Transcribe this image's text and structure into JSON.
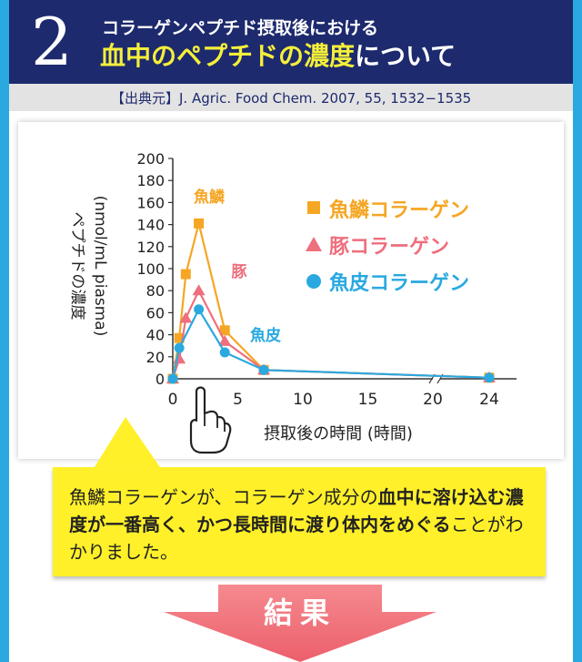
{
  "header": {
    "number": "2",
    "subtitle": "コラーゲンペプチド摂取後における",
    "title_highlight": "血中のペプチドの濃度",
    "title_rest": "について"
  },
  "source": "【出典元】J. Agric. Food Chem. 2007, 55, 1532−1535",
  "chart_data": {
    "type": "line",
    "ylabel_line1": "ペプチドの濃度",
    "ylabel_line2": "(nmol/mL piasma)",
    "xlabel": "摂取後の時間 (時間)",
    "y_ticks": [
      0,
      20,
      40,
      60,
      80,
      100,
      120,
      140,
      160,
      180,
      200
    ],
    "x_ticks": [
      0,
      5,
      10,
      15,
      20,
      24
    ],
    "ylim": [
      0,
      200
    ],
    "x_break_after": 20,
    "series": [
      {
        "name": "魚鱗コラーゲン",
        "color": "#f5a623",
        "marker": "square",
        "points": [
          [
            0,
            0
          ],
          [
            0.5,
            37
          ],
          [
            1,
            95
          ],
          [
            2,
            141
          ],
          [
            4,
            44
          ],
          [
            7,
            8
          ],
          [
            24,
            1
          ]
        ]
      },
      {
        "name": "豚コラーゲン",
        "color": "#ee6f7d",
        "marker": "triangle",
        "points": [
          [
            0,
            0
          ],
          [
            0.5,
            18
          ],
          [
            1,
            55
          ],
          [
            2,
            80
          ],
          [
            4,
            34
          ],
          [
            7,
            8
          ],
          [
            24,
            1
          ]
        ]
      },
      {
        "name": "魚皮コラーゲン",
        "color": "#29a9e0",
        "marker": "circle",
        "points": [
          [
            0,
            0
          ],
          [
            0.5,
            28
          ],
          [
            2,
            63
          ],
          [
            4,
            24
          ],
          [
            7,
            8
          ],
          [
            24,
            1
          ]
        ]
      }
    ],
    "annotations": [
      {
        "text": "魚鱗",
        "color": "#f5a623"
      },
      {
        "text": "豚",
        "color": "#ee6f7d"
      },
      {
        "text": "魚皮",
        "color": "#29a9e0"
      }
    ]
  },
  "callout": {
    "seg1": "魚鱗コラーゲンが、コラーゲン成分の",
    "seg2": "血中に溶け込む濃度が一番高く、かつ長時間に渡り体内をめぐる",
    "seg3": "ことがわかりました。"
  },
  "result_label": "結果"
}
